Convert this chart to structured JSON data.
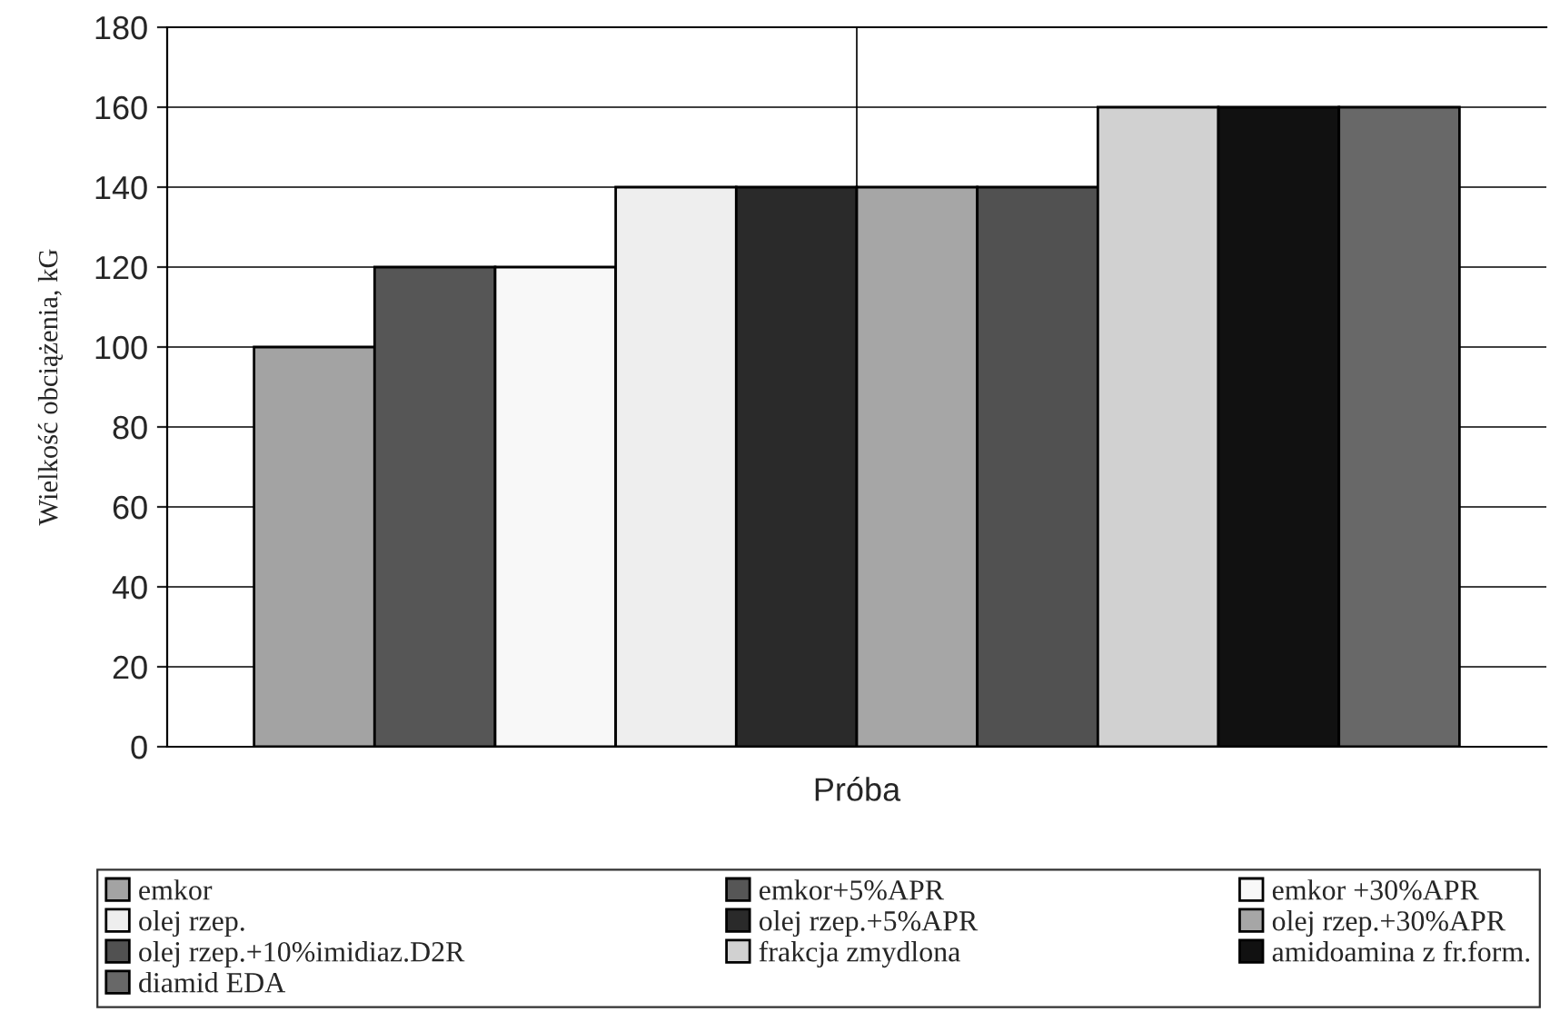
{
  "chart_data": {
    "type": "bar",
    "xlabel": "Próba",
    "ylabel": "Wielkość obciążenia, kG",
    "categories": [
      null
    ],
    "series": [
      {
        "name": "emkor",
        "color": "#a3a3a3",
        "values": [
          100
        ]
      },
      {
        "name": "emkor+5%APR",
        "color": "#565656",
        "values": [
          120
        ]
      },
      {
        "name": "emkor +30%APR",
        "color": "#f8f8f8",
        "values": [
          120
        ]
      },
      {
        "name": "olej rzep.",
        "color": "#eeeeee",
        "values": [
          140
        ]
      },
      {
        "name": "olej rzep.+5%APR",
        "color": "#2a2a2a",
        "values": [
          140
        ]
      },
      {
        "name": "olej rzep.+30%APR",
        "color": "#a6a6a6",
        "values": [
          140
        ]
      },
      {
        "name": "olej rzep.+10%imidiaz.D2R",
        "color": "#515151",
        "values": [
          140
        ]
      },
      {
        "name": "frakcja zmydlona",
        "color": "#d1d1d1",
        "values": [
          160
        ]
      },
      {
        "name": "amidoamina z fr.form.",
        "color": "#111111",
        "values": [
          160
        ]
      },
      {
        "name": "diamid EDA",
        "color": "#686868",
        "values": [
          160
        ]
      }
    ],
    "ylim": [
      0,
      180
    ],
    "yticks": [
      0,
      20,
      40,
      60,
      80,
      100,
      120,
      140,
      160,
      180
    ],
    "grid": true,
    "legend": "bottom",
    "tick_labels": "y"
  }
}
